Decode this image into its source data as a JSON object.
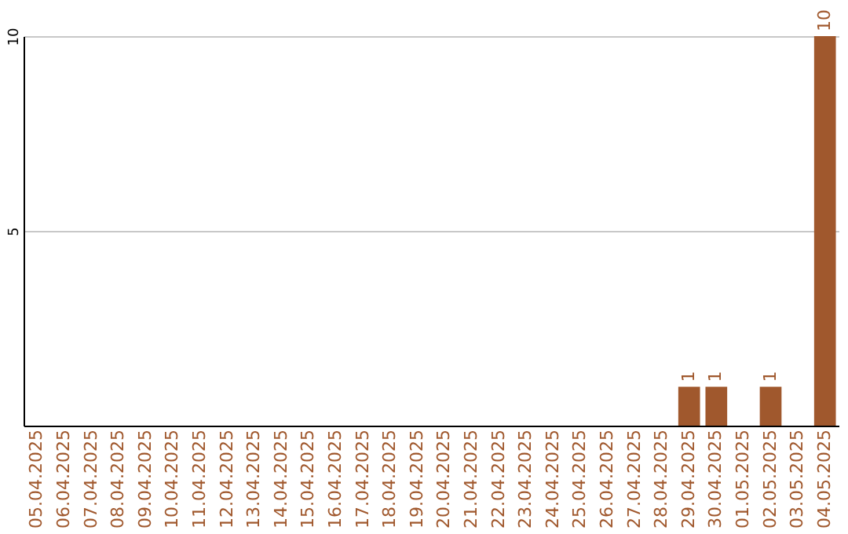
{
  "chart_data": {
    "type": "bar",
    "categories": [
      "05.04.2025",
      "06.04.2025",
      "07.04.2025",
      "08.04.2025",
      "09.04.2025",
      "10.04.2025",
      "11.04.2025",
      "12.04.2025",
      "13.04.2025",
      "14.04.2025",
      "15.04.2025",
      "16.04.2025",
      "17.04.2025",
      "18.04.2025",
      "19.04.2025",
      "20.04.2025",
      "21.04.2025",
      "22.04.2025",
      "23.04.2025",
      "24.04.2025",
      "25.04.2025",
      "26.04.2025",
      "27.04.2025",
      "28.04.2025",
      "29.04.2025",
      "30.04.2025",
      "01.05.2025",
      "02.05.2025",
      "03.05.2025",
      "04.05.2025"
    ],
    "values": [
      0,
      0,
      0,
      0,
      0,
      0,
      0,
      0,
      0,
      0,
      0,
      0,
      0,
      0,
      0,
      0,
      0,
      0,
      0,
      0,
      0,
      0,
      0,
      0,
      1,
      1,
      0,
      1,
      0,
      10
    ],
    "value_labels": [
      null,
      null,
      null,
      null,
      null,
      null,
      null,
      null,
      null,
      null,
      null,
      null,
      null,
      null,
      null,
      null,
      null,
      null,
      null,
      null,
      null,
      null,
      null,
      null,
      "1",
      "1",
      null,
      "1",
      null,
      "10"
    ],
    "color": "#a0582d",
    "ylim": [
      0,
      10
    ],
    "yticks": [
      5,
      10
    ],
    "grid": "y"
  }
}
